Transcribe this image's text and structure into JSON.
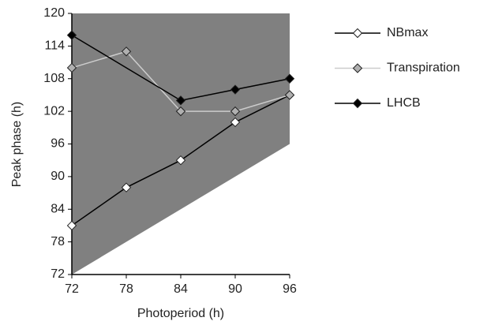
{
  "chart_data": {
    "type": "line",
    "x_label": "Photoperiod (h)",
    "y_label": "Peak phase (h)",
    "xlim": [
      72,
      96
    ],
    "ylim": [
      72,
      120
    ],
    "xticks": [
      72,
      78,
      84,
      90,
      96
    ],
    "yticks": [
      72,
      78,
      84,
      90,
      96,
      102,
      108,
      114,
      120
    ],
    "shade": {
      "x": [
        72,
        96
      ],
      "y": [
        72,
        96
      ],
      "color": "#808080"
    },
    "legend": "right",
    "series": [
      {
        "name": "NBmax",
        "color": "#000000",
        "marker_color": "#ffffff",
        "x": [
          72,
          78,
          84,
          90,
          96
        ],
        "values": [
          81,
          88,
          93,
          100,
          105
        ]
      },
      {
        "name": "Transpiration",
        "color": "#cccccc",
        "marker_color": "#b0b0b0",
        "x": [
          72,
          78,
          84,
          90,
          96
        ],
        "values": [
          110,
          113,
          102,
          102,
          105
        ]
      },
      {
        "name": "LHCB",
        "color": "#000000",
        "marker_color": "#000000",
        "x": [
          72,
          84,
          90,
          96
        ],
        "values": [
          116,
          104,
          106,
          108
        ]
      }
    ]
  }
}
